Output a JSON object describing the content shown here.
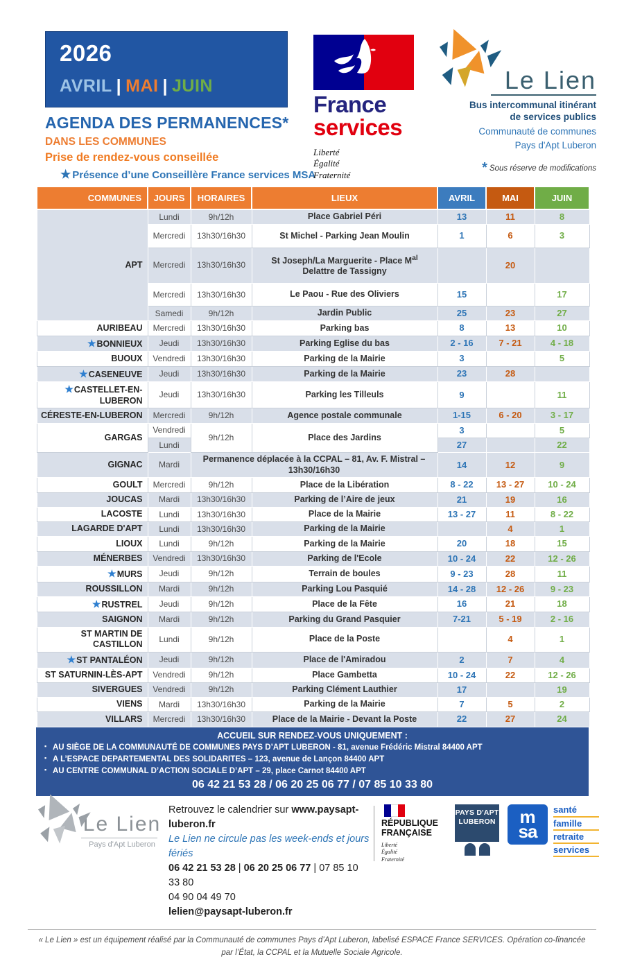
{
  "colors": {
    "header_orange": "#ED7D31",
    "avril_blue": "#3C7CBE",
    "mai_orange": "#C55A11",
    "juin_green": "#70AD47",
    "value_blue": "#2E75B6",
    "stripe_gray": "#d9dfe9",
    "banner_blue": "#2f5496",
    "year_box_blue": "#2156a3",
    "title_blue": "#2565ae",
    "france_navy": "#000091",
    "services_red": "#E1000F",
    "msa_blue": "#1b5fc2"
  },
  "page": {
    "year": "2026",
    "months": [
      {
        "label": "AVRIL"
      },
      {
        "label": "MAI"
      },
      {
        "label": "JUIN"
      }
    ],
    "months_separator": "|",
    "title": "AGENDA DES PERMANENCES*",
    "subtitle": "DANS LES COMMUNES",
    "advice": "Prise de rendez-vous conseillée",
    "star_glyph": "★",
    "msa_note": "Présence d’une Conseillère France services MSA"
  },
  "france_services": {
    "name1": "France",
    "name2": "services",
    "motto": [
      "Liberté",
      "Égalité",
      "Fraternité"
    ]
  },
  "le_lien": {
    "name": "Le Lien",
    "desc1": "Bus intercommunal itinérant",
    "desc2": "de services publics",
    "desc3": "Communauté de communes",
    "desc4": "Pays d'Apt Luberon",
    "asterisk": "*",
    "reserve": "Sous réserve de modifications"
  },
  "table": {
    "headers": [
      "COMMUNES",
      "JOURS",
      "HORAIRES",
      "LIEUX",
      "AVRIL",
      "MAI",
      "JUIN"
    ],
    "rows": [
      {
        "commune": {
          "text": "APT",
          "star": false,
          "rowspan": 5,
          "shade": "g"
        },
        "jour": "Lundi",
        "horaire": "9h/12h",
        "lieu": "Place Gabriel Péri",
        "avril": "13",
        "mai": "11",
        "juin": "8",
        "shade": "g",
        "tall": false
      },
      {
        "jour": "Mercredi",
        "horaire": "13h30/16h30",
        "lieu": "St Michel - Parking Jean Moulin",
        "avril": "1",
        "mai": "6",
        "juin": "3",
        "shade": "w",
        "tall": true
      },
      {
        "jour": "Mercredi",
        "horaire": "13h30/16h30",
        "lieu": {
          "pre": "St Joseph/La Marguerite - Place M",
          "sup": "al",
          "post": " Delattre de Tassigny"
        },
        "avril": "",
        "mai": "20",
        "juin": "",
        "shade": "g",
        "tall": true
      },
      {
        "jour": "Mercredi",
        "horaire": "13h30/16h30",
        "lieu": "Le Paou - Rue des Oliviers",
        "avril": "15",
        "mai": "",
        "juin": "17",
        "shade": "w",
        "tall": true
      },
      {
        "jour": "Samedi",
        "horaire": "9h/12h",
        "lieu": "Jardin Public",
        "avril": "25",
        "mai": "23",
        "juin": "27",
        "shade": "g",
        "tall": false
      },
      {
        "commune": {
          "text": "AURIBEAU",
          "star": false
        },
        "jour": "Mercredi",
        "horaire": "13h30/16h30",
        "lieu": "Parking bas",
        "avril": "8",
        "mai": "13",
        "juin": "10",
        "shade": "w"
      },
      {
        "commune": {
          "text": "BONNIEUX",
          "star": true
        },
        "jour": "Jeudi",
        "horaire": "13h30/16h30",
        "lieu": "Parking Eglise du bas",
        "avril": "2 - 16",
        "mai": "7 - 21",
        "juin": "4 - 18",
        "shade": "g"
      },
      {
        "commune": {
          "text": "BUOUX",
          "star": false
        },
        "jour": "Vendredi",
        "horaire": "13h30/16h30",
        "lieu": "Parking de la Mairie",
        "avril": "3",
        "mai": "",
        "juin": "5",
        "shade": "w"
      },
      {
        "commune": {
          "text": "CASENEUVE",
          "star": true
        },
        "jour": "Jeudi",
        "horaire": "13h30/16h30",
        "lieu": "Parking de la Mairie",
        "avril": "23",
        "mai": "28",
        "juin": "",
        "shade": "g"
      },
      {
        "commune": {
          "text": "CASTELLET-EN-LUBERON",
          "star": true
        },
        "jour": "Jeudi",
        "horaire": "13h30/16h30",
        "lieu": "Parking les Tilleuls",
        "avril": "9",
        "mai": "",
        "juin": "11",
        "shade": "w"
      },
      {
        "commune": {
          "text": "CÉRESTE-EN-LUBERON",
          "star": false
        },
        "jour": "Mercredi",
        "horaire": "9h/12h",
        "lieu": "Agence postale communale",
        "avril": "1-15",
        "mai": "6 - 20",
        "juin": "3 - 17",
        "shade": "g"
      },
      {
        "commune": {
          "text": "GARGAS",
          "star": false,
          "rowspan": 2,
          "shade": "w"
        },
        "jour": "Vendredi",
        "horaire": "9h/12h",
        "horaire_rowspan": 2,
        "lieu": "Place des Jardins",
        "lieu_rowspan": 2,
        "avril": "3",
        "mai": "",
        "juin": "5",
        "shade": "w"
      },
      {
        "jour": "Lundi",
        "avril": "27",
        "mai": "",
        "juin": "22",
        "shade": "g"
      },
      {
        "commune": {
          "text": "GIGNAC",
          "star": false
        },
        "jour": "Mardi",
        "lieu": "Permanence déplacée à la CCPAL – 81, Av. F. Mistral – 13h30/16h30",
        "lieu_colspan": 2,
        "avril": "14",
        "mai": "12",
        "juin": "9",
        "shade": "g"
      },
      {
        "commune": {
          "text": "GOULT",
          "star": false
        },
        "jour": "Mercredi",
        "horaire": "9h/12h",
        "lieu": "Place de la Libération",
        "avril": "8 - 22",
        "mai": "13 - 27",
        "juin": "10 - 24",
        "shade": "w"
      },
      {
        "commune": {
          "text": "JOUCAS",
          "star": false
        },
        "jour": "Mardi",
        "horaire": "13h30/16h30",
        "lieu": "Parking de l’Aire de jeux",
        "avril": "21",
        "mai": "19",
        "juin": "16",
        "shade": "g"
      },
      {
        "commune": {
          "text": "LACOSTE",
          "star": false
        },
        "jour": "Lundi",
        "horaire": "13h30/16h30",
        "lieu": "Place de la Mairie",
        "avril": "13 - 27",
        "mai": "11",
        "juin": "8 - 22",
        "shade": "w"
      },
      {
        "commune": {
          "text": "LAGARDE D'APT",
          "star": false
        },
        "jour": "Lundi",
        "horaire": "13h30/16h30",
        "lieu": "Parking de la Mairie",
        "avril": "",
        "mai": "4",
        "juin": "1",
        "shade": "g"
      },
      {
        "commune": {
          "text": "LIOUX",
          "star": false
        },
        "jour": "Lundi",
        "horaire": "9h/12h",
        "lieu": "Parking de la Mairie",
        "avril": "20",
        "mai": "18",
        "juin": "15",
        "shade": "w"
      },
      {
        "commune": {
          "text": "MÉNERBES",
          "star": false
        },
        "jour": "Vendredi",
        "horaire": "13h30/16h30",
        "lieu": "Parking de l'Ecole",
        "avril": "10 - 24",
        "mai": "22",
        "juin": "12 - 26",
        "shade": "g"
      },
      {
        "commune": {
          "text": "MURS",
          "star": true
        },
        "jour": "Jeudi",
        "horaire": "9h/12h",
        "lieu": "Terrain de boules",
        "avril": "9 - 23",
        "mai": "28",
        "juin": "11",
        "shade": "w"
      },
      {
        "commune": {
          "text": "ROUSSILLON",
          "star": false
        },
        "jour": "Mardi",
        "horaire": "9h/12h",
        "lieu": "Parking Lou Pasquié",
        "avril": "14 - 28",
        "mai": "12 - 26",
        "juin": "9 - 23",
        "shade": "g"
      },
      {
        "commune": {
          "text": "RUSTREL",
          "star": true
        },
        "jour": "Jeudi",
        "horaire": "9h/12h",
        "lieu": "Place de la Fête",
        "avril": "16",
        "mai": "21",
        "juin": "18",
        "shade": "w"
      },
      {
        "commune": {
          "text": "SAIGNON",
          "star": false
        },
        "jour": "Mardi",
        "horaire": "9h/12h",
        "lieu": "Parking du Grand Pasquier",
        "avril": "7-21",
        "mai": "5 - 19",
        "juin": "2 - 16",
        "shade": "g"
      },
      {
        "commune": {
          "text": "ST MARTIN DE CASTILLON",
          "star": false
        },
        "jour": "Lundi",
        "horaire": "9h/12h",
        "lieu": "Place de la Poste",
        "avril": "",
        "mai": "4",
        "juin": "1",
        "shade": "w"
      },
      {
        "commune": {
          "text": "ST PANTALÉON",
          "star": true
        },
        "jour": "Jeudi",
        "horaire": "9h/12h",
        "lieu": "Place de l'Amiradou",
        "avril": "2",
        "mai": "7",
        "juin": "4",
        "shade": "g"
      },
      {
        "commune": {
          "text": "ST SATURNIN-LÈS-APT",
          "star": false
        },
        "jour": "Vendredi",
        "horaire": "9h/12h",
        "lieu": "Place Gambetta",
        "avril": "10 - 24",
        "mai": "22",
        "juin": "12 - 26",
        "shade": "w"
      },
      {
        "commune": {
          "text": "SIVERGUES",
          "star": false
        },
        "jour": "Vendredi",
        "horaire": "9h/12h",
        "lieu": "Parking Clément Lauthier",
        "avril": "17",
        "mai": "",
        "juin": "19",
        "shade": "g"
      },
      {
        "commune": {
          "text": "VIENS",
          "star": false
        },
        "jour": "Mardi",
        "horaire": "13h30/16h30",
        "lieu": "Parking de la Mairie",
        "avril": "7",
        "mai": "5",
        "juin": "2",
        "shade": "w"
      },
      {
        "commune": {
          "text": "VILLARS",
          "star": false
        },
        "jour": "Mercredi",
        "horaire": "13h30/16h30",
        "lieu": "Place de la Mairie - Devant la Poste",
        "avril": "22",
        "mai": "27",
        "juin": "24",
        "shade": "g"
      }
    ]
  },
  "banner": {
    "title": "ACCUEIL SUR RENDEZ-VOUS UNIQUEMENT :",
    "bullet_glyph": "▪",
    "bullets": [
      "AU SIÈGE DE LA COMMUNAUTÉ DE COMMUNES PAYS D’APT LUBERON - 81, avenue Frédéric Mistral 84400 APT",
      "A L’ESPACE DEPARTEMENTAL DES SOLIDARITES – 123, avenue de Lançon 84400 APT",
      "AU CENTRE COMMUNAL D’ACTION SOCIALE D’APT – 29, place Carnot 84400 APT"
    ],
    "phones": "06 42 21 53 28 / 06 20 25 06 77 / 07 85 10 33 80"
  },
  "footer": {
    "lelien_gray": {
      "name": "Le Lien",
      "sub": "Pays d'Apt Luberon"
    },
    "calendar_prefix": "Retrouvez le calendrier sur ",
    "site": "www.paysapt-luberon.fr",
    "closed_note": "Le Lien ne circule pas les week-ends et jours fériés",
    "phone_bold1": "06 42 21 53 28",
    "phone_sep": " | ",
    "phone_bold2": "06 20 25 06 77",
    "phone3": "07 85 10 33 80",
    "phone_landline": "04 90 04 49 70",
    "email": "lelien@paysapt-luberon.fr",
    "republique": {
      "l1": "RÉPUBLIQUE",
      "l2": "FRANÇAISE",
      "motto": [
        "Liberté",
        "Égalité",
        "Fraternité"
      ]
    },
    "pays_apt": {
      "l1": "PAYS D'APT",
      "l2": "LUBERON"
    },
    "msa": {
      "top": "m",
      "bottom": "sa",
      "services": [
        "santé",
        "famille",
        "retraite",
        "services"
      ]
    }
  },
  "note": {
    "line1": "« Le Lien » est un équipement réalisé par la Communauté de communes Pays d’Apt Luberon, labelisé ESPACE France SERVICES. Opération co-financée",
    "line2": "par l’État, la CCPAL et la Mutuelle Sociale Agricole."
  }
}
